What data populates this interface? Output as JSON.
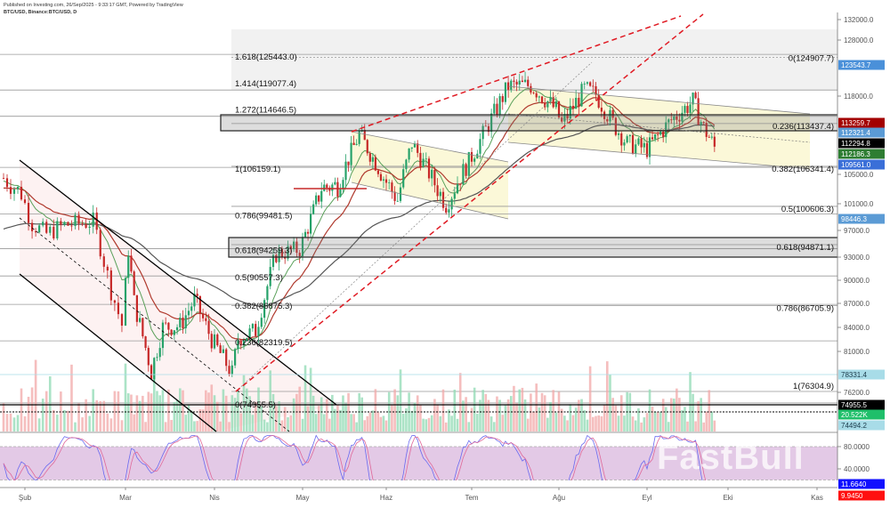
{
  "header": {
    "published": "Published on Investing.com, 26/Sep/2025 - 9:33:17 GMT, Powered by TradingView",
    "symbol": "BTC/USD, Binance:BTC/USD, D"
  },
  "watermark": "FastBull",
  "colors": {
    "up": "#26a269",
    "down": "#c62828",
    "ema_fast": "#5aa05a",
    "ema_mid": "#b03a2e",
    "ma_slow": "#555555",
    "stoch_k": "#6a6af0",
    "stoch_d": "#e06a9a",
    "stoch_band": "#e3c9e6"
  },
  "chart_data": {
    "type": "candlestick",
    "scale": "log",
    "x_ticks": [
      "Şub",
      "Mar",
      "Nis",
      "May",
      "Haz",
      "Tem",
      "Ağu",
      "Eyl",
      "Eki",
      "Kas"
    ],
    "y_ticks": [
      132000.0,
      128000.0,
      118000.0,
      105000.0,
      101000.0,
      97000.0,
      93000.0,
      90000.0,
      87000.0,
      84000.0,
      81000.0,
      76200.0
    ],
    "closes": [
      [
        "2025-01-26",
        104500
      ],
      [
        "2025-01-31",
        102400
      ],
      [
        "2025-02-03",
        98000
      ],
      [
        "2025-02-07",
        96500
      ],
      [
        "2025-02-12",
        97800
      ],
      [
        "2025-02-20",
        98300
      ],
      [
        "2025-02-25",
        88700
      ],
      [
        "2025-02-28",
        84300
      ],
      [
        "2025-03-02",
        94200
      ],
      [
        "2025-03-04",
        87200
      ],
      [
        "2025-03-10",
        78600
      ],
      [
        "2025-03-14",
        84000
      ],
      [
        "2025-03-20",
        84200
      ],
      [
        "2025-03-25",
        87500
      ],
      [
        "2025-03-31",
        82500
      ],
      [
        "2025-04-07",
        78400
      ],
      [
        "2025-04-09",
        82600
      ],
      [
        "2025-04-15",
        83600
      ],
      [
        "2025-04-22",
        93500
      ],
      [
        "2025-04-30",
        94200
      ],
      [
        "2025-05-08",
        103200
      ],
      [
        "2025-05-14",
        103500
      ],
      [
        "2025-05-22",
        111700
      ],
      [
        "2025-05-31",
        104600
      ],
      [
        "2025-06-05",
        101500
      ],
      [
        "2025-06-10",
        110200
      ],
      [
        "2025-06-17",
        104500
      ],
      [
        "2025-06-22",
        100900
      ],
      [
        "2025-06-30",
        107100
      ],
      [
        "2025-07-10",
        116000
      ],
      [
        "2025-07-14",
        119800
      ],
      [
        "2025-07-22",
        119900
      ],
      [
        "2025-07-31",
        115700
      ],
      [
        "2025-08-02",
        113300
      ],
      [
        "2025-08-10",
        119200
      ],
      [
        "2025-08-14",
        118300
      ],
      [
        "2025-08-20",
        113500
      ],
      [
        "2025-08-25",
        110100
      ],
      [
        "2025-09-01",
        109200
      ],
      [
        "2025-09-10",
        114000
      ],
      [
        "2025-09-18",
        117100
      ],
      [
        "2025-09-22",
        112700
      ],
      [
        "2025-09-26",
        109600
      ]
    ],
    "fib_left": [
      {
        "label": "1.618(125443.0)",
        "price": 125443.0
      },
      {
        "label": "1.414(119077.4)",
        "price": 119077.4
      },
      {
        "label": "1.272(114646.5)",
        "price": 114646.5
      },
      {
        "label": "1(106159.1)",
        "price": 106159.1
      },
      {
        "label": "0.786(99481.5)",
        "price": 99481.5
      },
      {
        "label": "0.618(94259.3)",
        "price": 94259.3
      },
      {
        "label": "0.5(90557.3)",
        "price": 90557.3
      },
      {
        "label": "0.382(86875.3)",
        "price": 86875.3
      },
      {
        "label": "0.236(82319.5)",
        "price": 82319.5
      },
      {
        "label": "0(74955.5)",
        "price": 74955.5
      }
    ],
    "fib_right": [
      {
        "label": "0(124907.7)",
        "price": 124907.7
      },
      {
        "label": "0.236(113437.4)",
        "price": 113437.4
      },
      {
        "label": "0.382(106341.4)",
        "price": 106341.4
      },
      {
        "label": "0.5(100606.3)",
        "price": 100606.3
      },
      {
        "label": "0.618(94871.1)",
        "price": 94871.1
      },
      {
        "label": "0.786(86705.9)",
        "price": 86705.9
      },
      {
        "label": "1(76304.9)",
        "price": 76304.9
      }
    ],
    "price_labels": [
      {
        "text": "123543.7",
        "bg": "#4a90d9",
        "fg": "#ffffff"
      },
      {
        "text": "113259.7",
        "bg": "#a30000",
        "fg": "#ffffff"
      },
      {
        "text": "112321.4",
        "bg": "#5b9bd5",
        "fg": "#ffffff"
      },
      {
        "text": "112294.8",
        "bg": "#000000",
        "fg": "#ffffff"
      },
      {
        "text": "112186.3",
        "bg": "#2e7d32",
        "fg": "#ffffff"
      },
      {
        "text": "109561.0",
        "bg": "#3a6fd8",
        "fg": "#ffffff"
      },
      {
        "text": "98446.3",
        "bg": "#5b9bd5",
        "fg": "#ffffff"
      },
      {
        "text": "78331.4",
        "bg": "#a8dce8",
        "fg": "#1a3a4a"
      },
      {
        "text": "74955.5",
        "bg": "#000000",
        "fg": "#ffffff"
      },
      {
        "text": "20.522K",
        "bg": "#1fbf6a",
        "fg": "#ffffff"
      },
      {
        "text": "74494.2",
        "bg": "#a8dce8",
        "fg": "#1a3a4a"
      }
    ],
    "stoch": {
      "ticks": [
        "80.0000",
        "40.0000"
      ],
      "upper_band": 80,
      "lower_band": 20,
      "value_labels": [
        {
          "text": "11.6640",
          "bg": "#1010ff",
          "fg": "#ffffff"
        },
        {
          "text": "9.9450",
          "bg": "#ff1010",
          "fg": "#ffffff"
        }
      ]
    }
  }
}
